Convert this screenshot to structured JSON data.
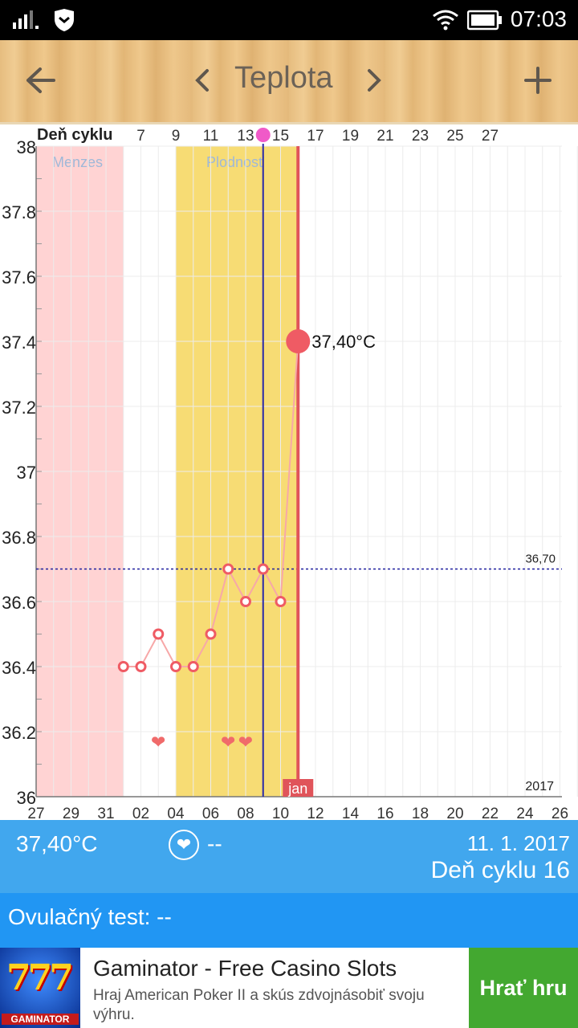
{
  "status_bar": {
    "time": "07:03",
    "icons": [
      "signal-icon",
      "shield-icon",
      "wifi-icon",
      "battery-icon"
    ]
  },
  "app_bar": {
    "title": "Teplota",
    "back_icon": "arrow-left-icon",
    "prev_icon": "chevron-left-icon",
    "next_icon": "chevron-right-icon",
    "add_icon": "plus-icon"
  },
  "chart_data": {
    "type": "line",
    "top_axis_label": "Deň cyklu",
    "top_ticks": [
      "7",
      "9",
      "11",
      "13",
      "15",
      "17",
      "19",
      "21",
      "23",
      "25",
      "27"
    ],
    "x_ticks": [
      "27",
      "29",
      "31",
      "02",
      "04",
      "06",
      "08",
      "10",
      "12",
      "14",
      "16",
      "18",
      "20",
      "22",
      "24",
      "26"
    ],
    "y_ticks": [
      "38",
      "37.8",
      "37.6",
      "37.4",
      "37.2",
      "37",
      "36.8",
      "36.6",
      "36.4",
      "36.2",
      "36"
    ],
    "ylim": [
      36,
      38
    ],
    "x_start": "2016-12-27",
    "dates": [
      "2017-01-01",
      "2017-01-02",
      "2017-01-03",
      "2017-01-04",
      "2017-01-05",
      "2017-01-06",
      "2017-01-07",
      "2017-01-08",
      "2017-01-09",
      "2017-01-10",
      "2017-01-11"
    ],
    "values": [
      36.4,
      36.4,
      36.5,
      36.4,
      36.4,
      36.5,
      36.7,
      36.6,
      36.7,
      36.6,
      37.4
    ],
    "menses": {
      "label": "Menzes",
      "from": "2016-12-27",
      "to": "2016-12-31"
    },
    "fertile": {
      "label": "Plodnosť",
      "from": "2017-01-04",
      "to": "2017-01-10"
    },
    "coverline": {
      "value": 36.7,
      "label": "36,70"
    },
    "ovulation_date": "2017-01-09",
    "today_date": "2017-01-11",
    "month_label": "jan",
    "year_label": "2017",
    "highlight_label": "37,40°C",
    "intercourse_dates": [
      "2017-01-03",
      "2017-01-07",
      "2017-01-08"
    ],
    "colors": {
      "menses": "#ffd3d3",
      "fertile": "#f7dc74",
      "line": "#f7a8a8",
      "point": "#ef5b64",
      "today": "#e0545a",
      "ovulation": "#2a2aa8",
      "coverline": "#1f1f9e"
    }
  },
  "info_panel": {
    "temperature": "37,40°C",
    "heart_icon": "heart-icon",
    "intercourse_value": "--",
    "date": "11. 1. 2017",
    "cycle_day": "Deň cyklu 16"
  },
  "ovulation_test": {
    "label": "Ovulačný test: --"
  },
  "ad": {
    "icon_text": "777",
    "icon_brand": "GAMINATOR",
    "title": "Gaminator - Free Casino Slots",
    "description": "Hraj American Poker II a skús zdvojnásobiť svoju výhru.",
    "cta": "Hrať hru"
  }
}
